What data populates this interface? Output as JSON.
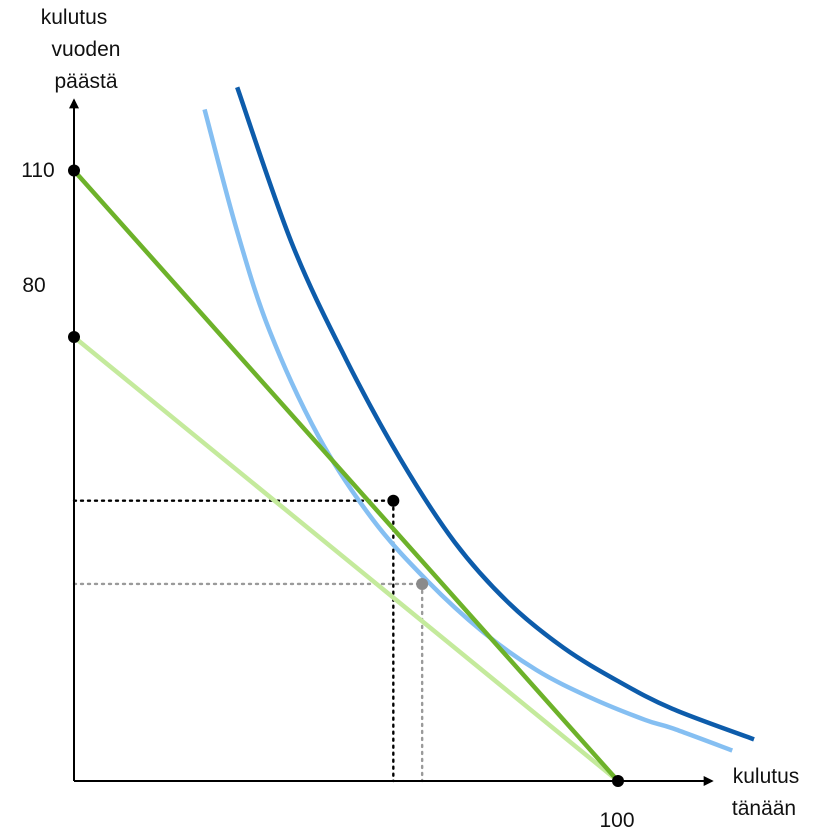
{
  "diagram": {
    "y_axis_label_lines": [
      "kulutus",
      "vuoden",
      "päästä"
    ],
    "x_axis_label_lines": [
      "kulutus",
      "tänään"
    ],
    "y_tick_labels": [
      "110",
      "80"
    ],
    "x_tick_labels": [
      "100"
    ]
  },
  "chart_data": {
    "type": "line",
    "title": "",
    "xlabel": "kulutus tänään",
    "ylabel": "kulutus vuoden päästä",
    "xlim": [
      0,
      135
    ],
    "ylim": [
      0,
      150
    ],
    "x_ticks": [
      {
        "value": 100,
        "label": "100"
      }
    ],
    "y_ticks": [
      {
        "value": 110,
        "label": "110"
      },
      {
        "value": 80,
        "label": "80"
      }
    ],
    "series": [
      {
        "role": "budget_line_110",
        "color": "#6db22a",
        "points": [
          [
            0,
            110
          ],
          [
            100,
            0
          ]
        ]
      },
      {
        "role": "budget_line_80",
        "color": "#c4ea9c",
        "points": [
          [
            0,
            80
          ],
          [
            100,
            0
          ]
        ]
      },
      {
        "role": "indifference_curve_high",
        "color": "#0d5cab",
        "points": [
          [
            30,
            125
          ],
          [
            40,
            97
          ],
          [
            50,
            76
          ],
          [
            60,
            58
          ],
          [
            70,
            43
          ],
          [
            80,
            32
          ],
          [
            90,
            24
          ],
          [
            100,
            18
          ],
          [
            110,
            13
          ],
          [
            125,
            7.5
          ]
        ]
      },
      {
        "role": "indifference_curve_low",
        "color": "#85bff2",
        "points": [
          [
            24,
            121
          ],
          [
            30,
            99
          ],
          [
            36,
            81
          ],
          [
            45,
            62
          ],
          [
            55,
            47
          ],
          [
            65,
            36
          ],
          [
            75,
            27
          ],
          [
            85,
            20
          ],
          [
            95,
            15
          ],
          [
            105,
            11
          ],
          [
            110,
            9.5
          ],
          [
            121,
            5.5
          ]
        ]
      }
    ],
    "points": [
      {
        "role": "optimum_high",
        "x": 58.7,
        "y": 50.5,
        "color": "#000000"
      },
      {
        "role": "optimum_low",
        "x": 64,
        "y": 35.5,
        "color": "#8a8a8a"
      },
      {
        "role": "intercept_110",
        "x": 0,
        "y": 110,
        "color": "#000000"
      },
      {
        "role": "intercept_80",
        "x": 0,
        "y": 80,
        "color": "#000000"
      },
      {
        "role": "intercept_100",
        "x": 100,
        "y": 0,
        "color": "#000000"
      }
    ],
    "guides": [
      {
        "role": "optimum_high_guides",
        "x": 58.7,
        "y": 50.5,
        "color": "#000000"
      },
      {
        "role": "optimum_low_guides",
        "x": 64,
        "y": 35.5,
        "color": "#9a9a9a"
      }
    ],
    "colors": {
      "axis": "#000000"
    }
  }
}
